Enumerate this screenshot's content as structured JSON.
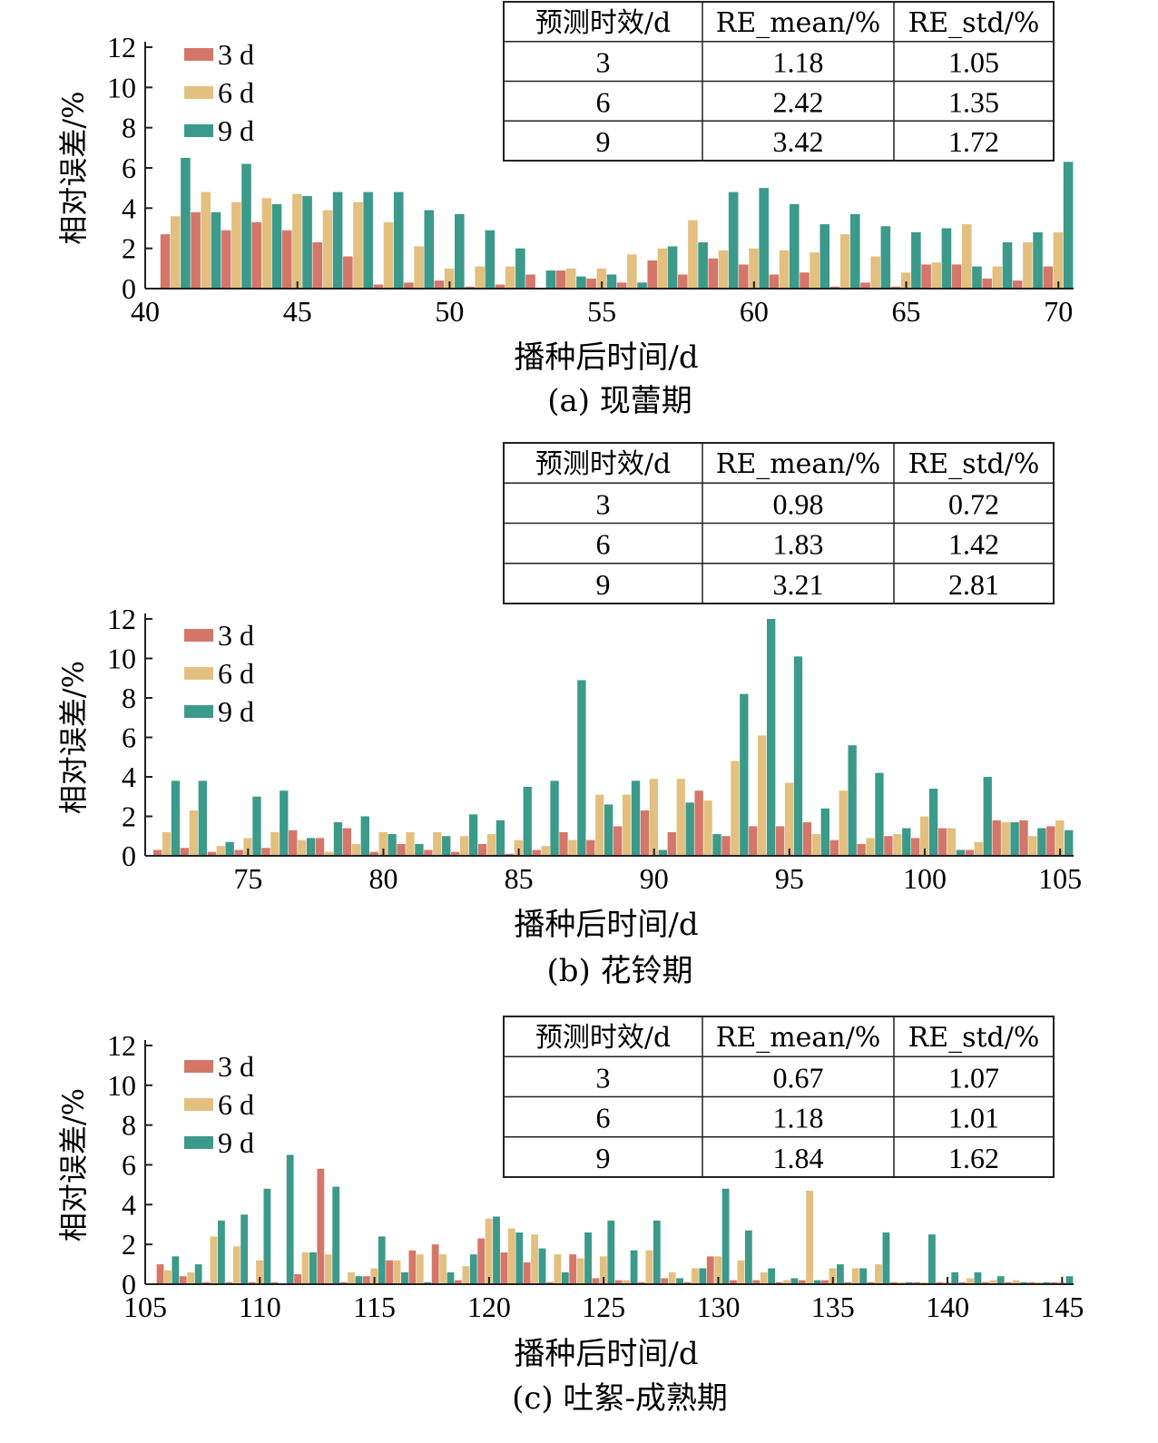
{
  "colors": {
    "3d": "#d4776a",
    "6d": "#e3c07f",
    "9d": "#3c9a8a"
  },
  "chart_data": [
    {
      "type": "bar",
      "caption": "(a) 现蕾期",
      "xlabel": "播种后时间/d",
      "ylabel": "相对误差/%",
      "xlim": [
        40,
        70.5
      ],
      "ylim": [
        0,
        12
      ],
      "xticks": [
        40,
        45,
        50,
        55,
        60,
        65,
        70
      ],
      "yticks": [
        0,
        2,
        4,
        6,
        8,
        10,
        12
      ],
      "legend": [
        "3 d",
        "6 d",
        "9 d"
      ],
      "table": {
        "headers": [
          "预测时效/d",
          "RE_mean/%",
          "RE_std/%"
        ],
        "rows": [
          [
            "3",
            "1.18",
            "1.05"
          ],
          [
            "6",
            "2.42",
            "1.35"
          ],
          [
            "9",
            "3.42",
            "1.72"
          ]
        ]
      },
      "x": [
        41,
        42,
        43,
        44,
        45,
        46,
        47,
        48,
        49,
        50,
        51,
        52,
        53,
        54,
        55,
        56,
        57,
        58,
        59,
        60,
        61,
        62,
        63,
        64,
        65,
        66,
        67,
        68,
        69,
        70
      ],
      "series": [
        {
          "name": "3 d",
          "values": [
            2.7,
            3.8,
            2.9,
            3.3,
            2.9,
            2.3,
            1.6,
            0.2,
            0.3,
            0.4,
            0.1,
            0.2,
            0.7,
            0.9,
            0.5,
            0.3,
            1.4,
            0.7,
            1.5,
            1.2,
            0.7,
            0.8,
            0.1,
            0.3,
            0.1,
            1.2,
            1.2,
            0.5,
            0.4,
            1.1
          ]
        },
        {
          "name": "6 d",
          "values": [
            3.6,
            4.8,
            4.3,
            4.5,
            4.7,
            3.9,
            4.3,
            3.3,
            2.1,
            1.0,
            1.1,
            1.1,
            0,
            1.0,
            1.0,
            1.7,
            2.0,
            3.4,
            1.9,
            2.0,
            1.9,
            1.8,
            2.7,
            1.6,
            0.8,
            1.3,
            3.2,
            1.1,
            2.3,
            2.8
          ]
        },
        {
          "name": "9 d",
          "values": [
            6.5,
            3.8,
            6.2,
            4.2,
            4.6,
            4.8,
            4.8,
            4.8,
            3.9,
            3.7,
            2.9,
            2.0,
            0.9,
            0.6,
            0.7,
            0.3,
            2.1,
            2.3,
            4.8,
            5.0,
            4.2,
            3.2,
            3.7,
            3.1,
            2.8,
            3.0,
            1.1,
            2.3,
            2.8,
            6.3
          ]
        }
      ]
    },
    {
      "type": "bar",
      "caption": "(b) 花铃期",
      "xlabel": "播种后时间/d",
      "ylabel": "相对误差/%",
      "xlim": [
        71.2,
        105.5
      ],
      "ylim": [
        0,
        12
      ],
      "xticks": [
        75,
        80,
        85,
        90,
        95,
        100,
        105
      ],
      "yticks": [
        0,
        2,
        4,
        6,
        8,
        10,
        12
      ],
      "legend": [
        "3 d",
        "6 d",
        "9 d"
      ],
      "table": {
        "headers": [
          "预测时效/d",
          "RE_mean/%",
          "RE_std/%"
        ],
        "rows": [
          [
            "3",
            "0.98",
            "0.72"
          ],
          [
            "6",
            "1.83",
            "1.42"
          ],
          [
            "9",
            "3.21",
            "2.81"
          ]
        ]
      },
      "x": [
        72,
        73,
        74,
        75,
        76,
        77,
        78,
        79,
        80,
        81,
        82,
        83,
        84,
        85,
        86,
        87,
        88,
        89,
        90,
        91,
        92,
        93,
        94,
        95,
        96,
        97,
        98,
        99,
        100,
        101,
        102,
        103,
        104,
        105
      ],
      "series": [
        {
          "name": "3 d",
          "values": [
            0.3,
            0.4,
            0.2,
            0.3,
            0.4,
            1.3,
            0.9,
            1.4,
            0.2,
            0.6,
            0.3,
            0.2,
            0.6,
            0.1,
            0.3,
            1.2,
            0.8,
            1.5,
            2.3,
            1.2,
            3.3,
            1.0,
            1.5,
            1.5,
            1.7,
            0.8,
            0.6,
            1.0,
            0.9,
            1.4,
            0.3,
            1.8,
            1.8,
            1.5
          ]
        },
        {
          "name": "6 d",
          "values": [
            1.2,
            2.3,
            0.5,
            0.9,
            1.2,
            0.8,
            0.2,
            0.6,
            1.2,
            1.2,
            1.2,
            1.0,
            1.1,
            0.8,
            0.5,
            0.8,
            3.1,
            3.1,
            3.9,
            3.9,
            2.8,
            4.8,
            6.1,
            3.7,
            1.1,
            3.3,
            0.9,
            1.1,
            2.0,
            1.4,
            0.7,
            1.7,
            1.0,
            1.8
          ]
        },
        {
          "name": "9 d",
          "values": [
            3.8,
            3.8,
            0.7,
            3.0,
            3.3,
            0.9,
            1.7,
            2.0,
            1.1,
            0.6,
            1.0,
            2.1,
            1.8,
            3.5,
            3.8,
            8.9,
            2.6,
            3.8,
            0.3,
            2.7,
            1.1,
            8.2,
            12.0,
            10.1,
            2.4,
            5.6,
            4.2,
            1.4,
            3.4,
            0.3,
            4.0,
            1.7,
            1.4,
            1.3
          ]
        }
      ]
    },
    {
      "type": "bar",
      "caption": "(c) 吐絮-成熟期",
      "xlabel": "播种后时间/d",
      "ylabel": "相对误差/%",
      "xlim": [
        105,
        145.5
      ],
      "ylim": [
        0,
        12
      ],
      "xticks": [
        105,
        110,
        115,
        120,
        125,
        130,
        135,
        140,
        145
      ],
      "yticks": [
        0,
        2,
        4,
        6,
        8,
        10,
        12
      ],
      "legend": [
        "3 d",
        "6 d",
        "9 d"
      ],
      "table": {
        "headers": [
          "预测时效/d",
          "RE_mean/%",
          "RE_std/%"
        ],
        "rows": [
          [
            "3",
            "0.67",
            "1.07"
          ],
          [
            "6",
            "1.18",
            "1.01"
          ],
          [
            "9",
            "1.84",
            "1.62"
          ]
        ]
      },
      "x": [
        106,
        107,
        108,
        109,
        110,
        111,
        112,
        113,
        114,
        115,
        116,
        117,
        118,
        119,
        120,
        121,
        122,
        123,
        124,
        125,
        126,
        127,
        128,
        129,
        130,
        131,
        132,
        133,
        134,
        135,
        136,
        137,
        138,
        139,
        140,
        141,
        142,
        143,
        144,
        145
      ],
      "series": [
        {
          "name": "3 d",
          "values": [
            1.0,
            0.4,
            0.1,
            0.1,
            0.1,
            0.1,
            0.5,
            5.8,
            0.1,
            0.4,
            1.2,
            1.7,
            2.0,
            0.2,
            2.3,
            1.6,
            1.1,
            0.1,
            1.5,
            0.3,
            0.2,
            0.1,
            0.3,
            0.1,
            1.4,
            0.2,
            0.2,
            0.1,
            0.2,
            0.2,
            0.1,
            0.1,
            0.1,
            0.1,
            0.1,
            0.1,
            0.1,
            0.1,
            0.1,
            0.1
          ]
        },
        {
          "name": "6 d",
          "values": [
            0.7,
            0.6,
            2.4,
            1.9,
            1.2,
            0,
            1.6,
            1.5,
            0.6,
            0.8,
            1.2,
            1.5,
            1.5,
            0.9,
            3.3,
            2.8,
            2.5,
            1.5,
            1.3,
            1.4,
            0.2,
            1.7,
            0.6,
            0.8,
            1.4,
            1.2,
            0.6,
            0.2,
            4.7,
            0.8,
            0.8,
            1.0,
            0.1,
            0.1,
            0.1,
            0.3,
            0.2,
            0.2,
            0.1,
            0.1
          ]
        },
        {
          "name": "9 d",
          "values": [
            1.4,
            1.0,
            3.2,
            3.5,
            4.8,
            6.5,
            1.6,
            4.9,
            0.4,
            2.4,
            0.6,
            0.1,
            0.6,
            1.5,
            3.4,
            2.6,
            1.8,
            0.6,
            2.6,
            3.2,
            1.7,
            3.2,
            0.3,
            0.8,
            4.8,
            2.7,
            0.8,
            0.3,
            0.2,
            1.0,
            0.8,
            2.6,
            0.1,
            2.5,
            0.6,
            0.6,
            0.4,
            0.1,
            0.1,
            0.4
          ]
        }
      ]
    }
  ]
}
